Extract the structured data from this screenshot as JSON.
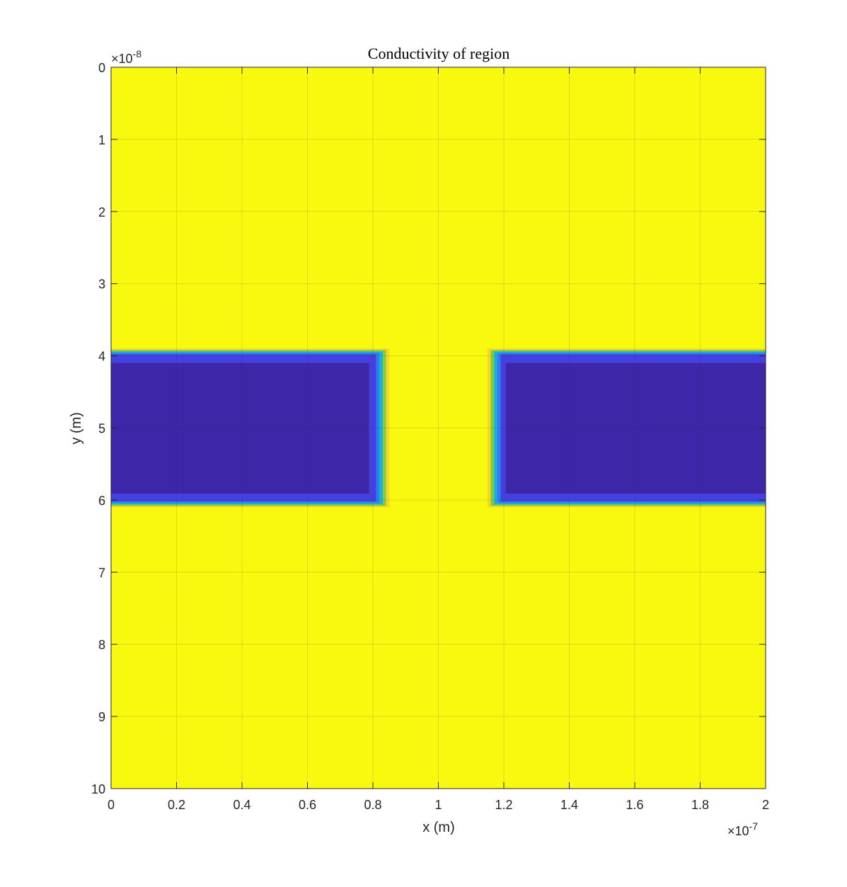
{
  "chart_data": {
    "type": "heatmap",
    "title": "Conductivity of region",
    "xlabel": "x (m)",
    "ylabel": "y (m)",
    "x_exponent_label": "×10",
    "x_exponent_power": "-7",
    "y_exponent_label": "×10",
    "y_exponent_power": "-8",
    "x_multiplier": 1e-07,
    "y_multiplier": 1e-08,
    "xlim": [
      0,
      2
    ],
    "ylim": [
      0,
      10
    ],
    "y_axis_reversed": true,
    "x_ticks": [
      "0",
      "0.2",
      "0.4",
      "0.6",
      "0.8",
      "1",
      "1.2",
      "1.4",
      "1.6",
      "1.8",
      "2"
    ],
    "x_tick_values": [
      0,
      0.2,
      0.4,
      0.6,
      0.8,
      1,
      1.2,
      1.4,
      1.6,
      1.8,
      2
    ],
    "y_ticks": [
      "0",
      "1",
      "2",
      "3",
      "4",
      "5",
      "6",
      "7",
      "8",
      "9",
      "10"
    ],
    "y_tick_values": [
      0,
      1,
      2,
      3,
      4,
      5,
      6,
      7,
      8,
      9,
      10
    ],
    "grid": true,
    "colormap": "parula",
    "background_color": "#f9f910",
    "low_color": "#3e26a8",
    "regions": [
      {
        "x0": 0,
        "x1": 0.8,
        "y0": 4,
        "y1": 6
      },
      {
        "x0": 1.2,
        "x1": 2,
        "y0": 4,
        "y1": 6
      }
    ],
    "edge_colors": [
      "#f5b93a",
      "#7ccf45",
      "#1fb0d8",
      "#2e80f2",
      "#4541e0"
    ]
  }
}
